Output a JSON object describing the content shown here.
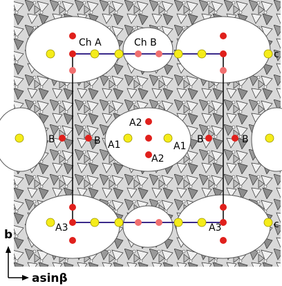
{
  "channels": [
    "Ch A",
    "Ch B"
  ],
  "sites": [
    "c",
    "c",
    "A2",
    "A2",
    "B",
    "B",
    "A1",
    "A1",
    "B",
    "B",
    "A3",
    "A3"
  ],
  "axes": {
    "vertical": "b",
    "horizontal": "asinβ"
  }
}
